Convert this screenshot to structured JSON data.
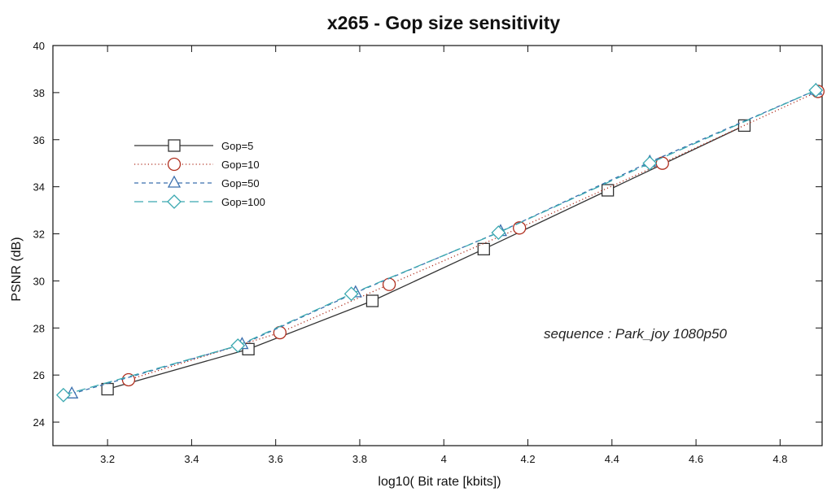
{
  "chart_data": {
    "type": "line",
    "title": "x265 - Gop size sensitivity",
    "xlabel": "log10( Bit rate [kbits])",
    "ylabel": "PSNR (dB)",
    "xlim": [
      3.07,
      4.9
    ],
    "ylim": [
      23,
      40
    ],
    "xticks": [
      "3.2",
      "3.4",
      "3.6",
      "3.8",
      "4",
      "4.2",
      "4.4",
      "4.6",
      "4.8"
    ],
    "yticks": [
      "24",
      "26",
      "28",
      "30",
      "32",
      "34",
      "36",
      "38",
      "40"
    ],
    "grid": false,
    "legend_position": "upper-left",
    "annotation": "sequence : Park_joy 1080p50",
    "series": [
      {
        "name": "Gop=5",
        "color": "#333333",
        "marker": "square",
        "line_style": "solid",
        "x": [
          3.2,
          3.535,
          3.83,
          4.095,
          4.39,
          4.715
        ],
        "y": [
          25.4,
          27.1,
          29.15,
          31.35,
          33.85,
          36.6
        ]
      },
      {
        "name": "Gop=10",
        "color": "#b03020",
        "marker": "circle",
        "line_style": "dotted",
        "x": [
          3.25,
          3.61,
          3.87,
          4.18,
          4.52,
          4.89
        ],
        "y": [
          25.8,
          27.8,
          29.85,
          32.25,
          35.0,
          38.05
        ]
      },
      {
        "name": "Gop=50",
        "color": "#3a6fae",
        "marker": "triangle",
        "line_style": "dashed",
        "x": [
          3.115,
          3.52,
          3.79,
          4.135,
          4.49,
          4.885
        ],
        "y": [
          25.2,
          27.3,
          29.5,
          32.1,
          35.05,
          38.1
        ]
      },
      {
        "name": "Gop=100",
        "color": "#3aa8b0",
        "marker": "diamond",
        "line_style": "longdash",
        "x": [
          3.095,
          3.51,
          3.78,
          4.13,
          4.49,
          4.885
        ],
        "y": [
          25.15,
          27.25,
          29.45,
          32.05,
          35.0,
          38.1
        ]
      }
    ]
  }
}
